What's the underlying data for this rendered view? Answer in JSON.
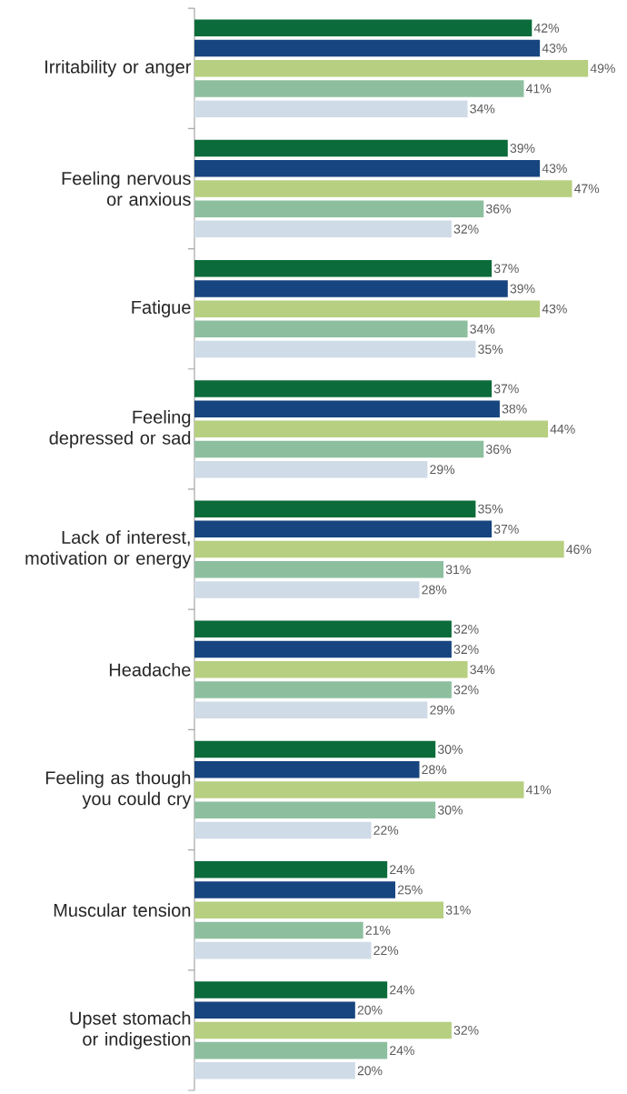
{
  "chart_data": {
    "type": "bar",
    "orientation": "horizontal",
    "categories": [
      "Irritability or anger",
      "Feeling nervous or anxious",
      "Fatigue",
      "Feeling depressed or sad",
      "Lack of interest, motivation or energy",
      "Headache",
      "Feeling as though you could cry",
      "Muscular tension",
      "Upset stomach or indigestion"
    ],
    "series": [
      {
        "color": "#0b6b3a",
        "values": [
          42,
          39,
          37,
          37,
          35,
          32,
          30,
          24,
          24
        ],
        "value_labels": [
          "42%",
          "39%",
          "37%",
          "37%",
          "35%",
          "32%",
          "30%",
          "24%",
          "24%"
        ]
      },
      {
        "color": "#17457f",
        "values": [
          43,
          43,
          39,
          38,
          37,
          32,
          28,
          25,
          20
        ],
        "value_labels": [
          "43%",
          "43%",
          "39%",
          "38%",
          "37%",
          "32%",
          "28%",
          "25%",
          "20%"
        ]
      },
      {
        "color": "#b6cf80",
        "values": [
          49,
          47,
          43,
          44,
          46,
          34,
          41,
          31,
          32
        ],
        "value_labels": [
          "49%",
          "47%",
          "43%",
          "44%",
          "46%",
          "34%",
          "41%",
          "31%",
          "32%"
        ]
      },
      {
        "color": "#8dbf9f",
        "values": [
          41,
          36,
          34,
          36,
          31,
          32,
          30,
          21,
          24
        ],
        "value_labels": [
          "41%",
          "36%",
          "34%",
          "36%",
          "31%",
          "32%",
          "30%",
          "21%",
          "24%"
        ]
      },
      {
        "color": "#cfdbe7",
        "values": [
          34,
          32,
          35,
          29,
          28,
          29,
          22,
          22,
          20
        ],
        "value_labels": [
          "34%",
          "32%",
          "35%",
          "29%",
          "28%",
          "29%",
          "22%",
          "22%",
          "20%"
        ]
      }
    ],
    "grid": false
  }
}
